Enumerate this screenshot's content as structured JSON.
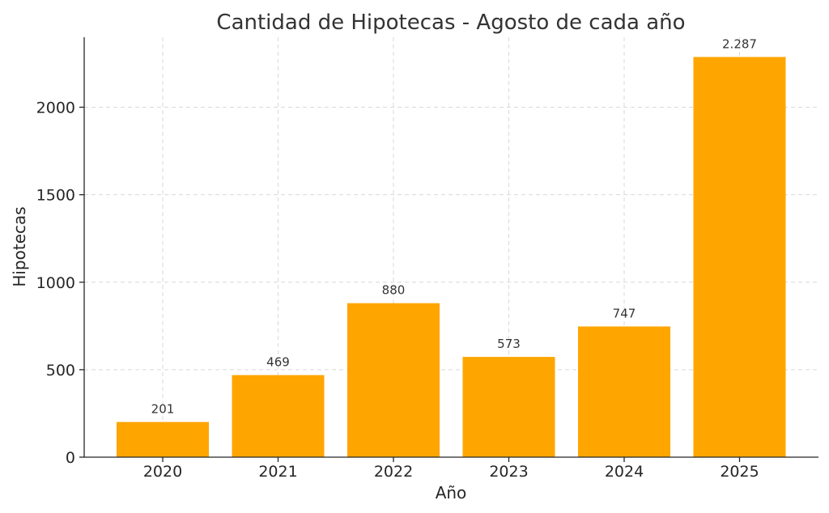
{
  "chart_data": {
    "type": "bar",
    "title": "Cantidad de Hipotecas - Agosto de cada año",
    "xlabel": "Año",
    "ylabel": "Hipotecas",
    "categories": [
      "2020",
      "2021",
      "2022",
      "2023",
      "2024",
      "2025"
    ],
    "values": [
      201,
      469,
      880,
      573,
      747,
      2287
    ],
    "data_labels": [
      "201",
      "469",
      "880",
      "573",
      "747",
      "2.287"
    ],
    "ylim": [
      0,
      2400
    ],
    "yticks": [
      0,
      500,
      1000,
      1500,
      2000
    ],
    "grid": true,
    "bar_color": "#FFA500"
  }
}
